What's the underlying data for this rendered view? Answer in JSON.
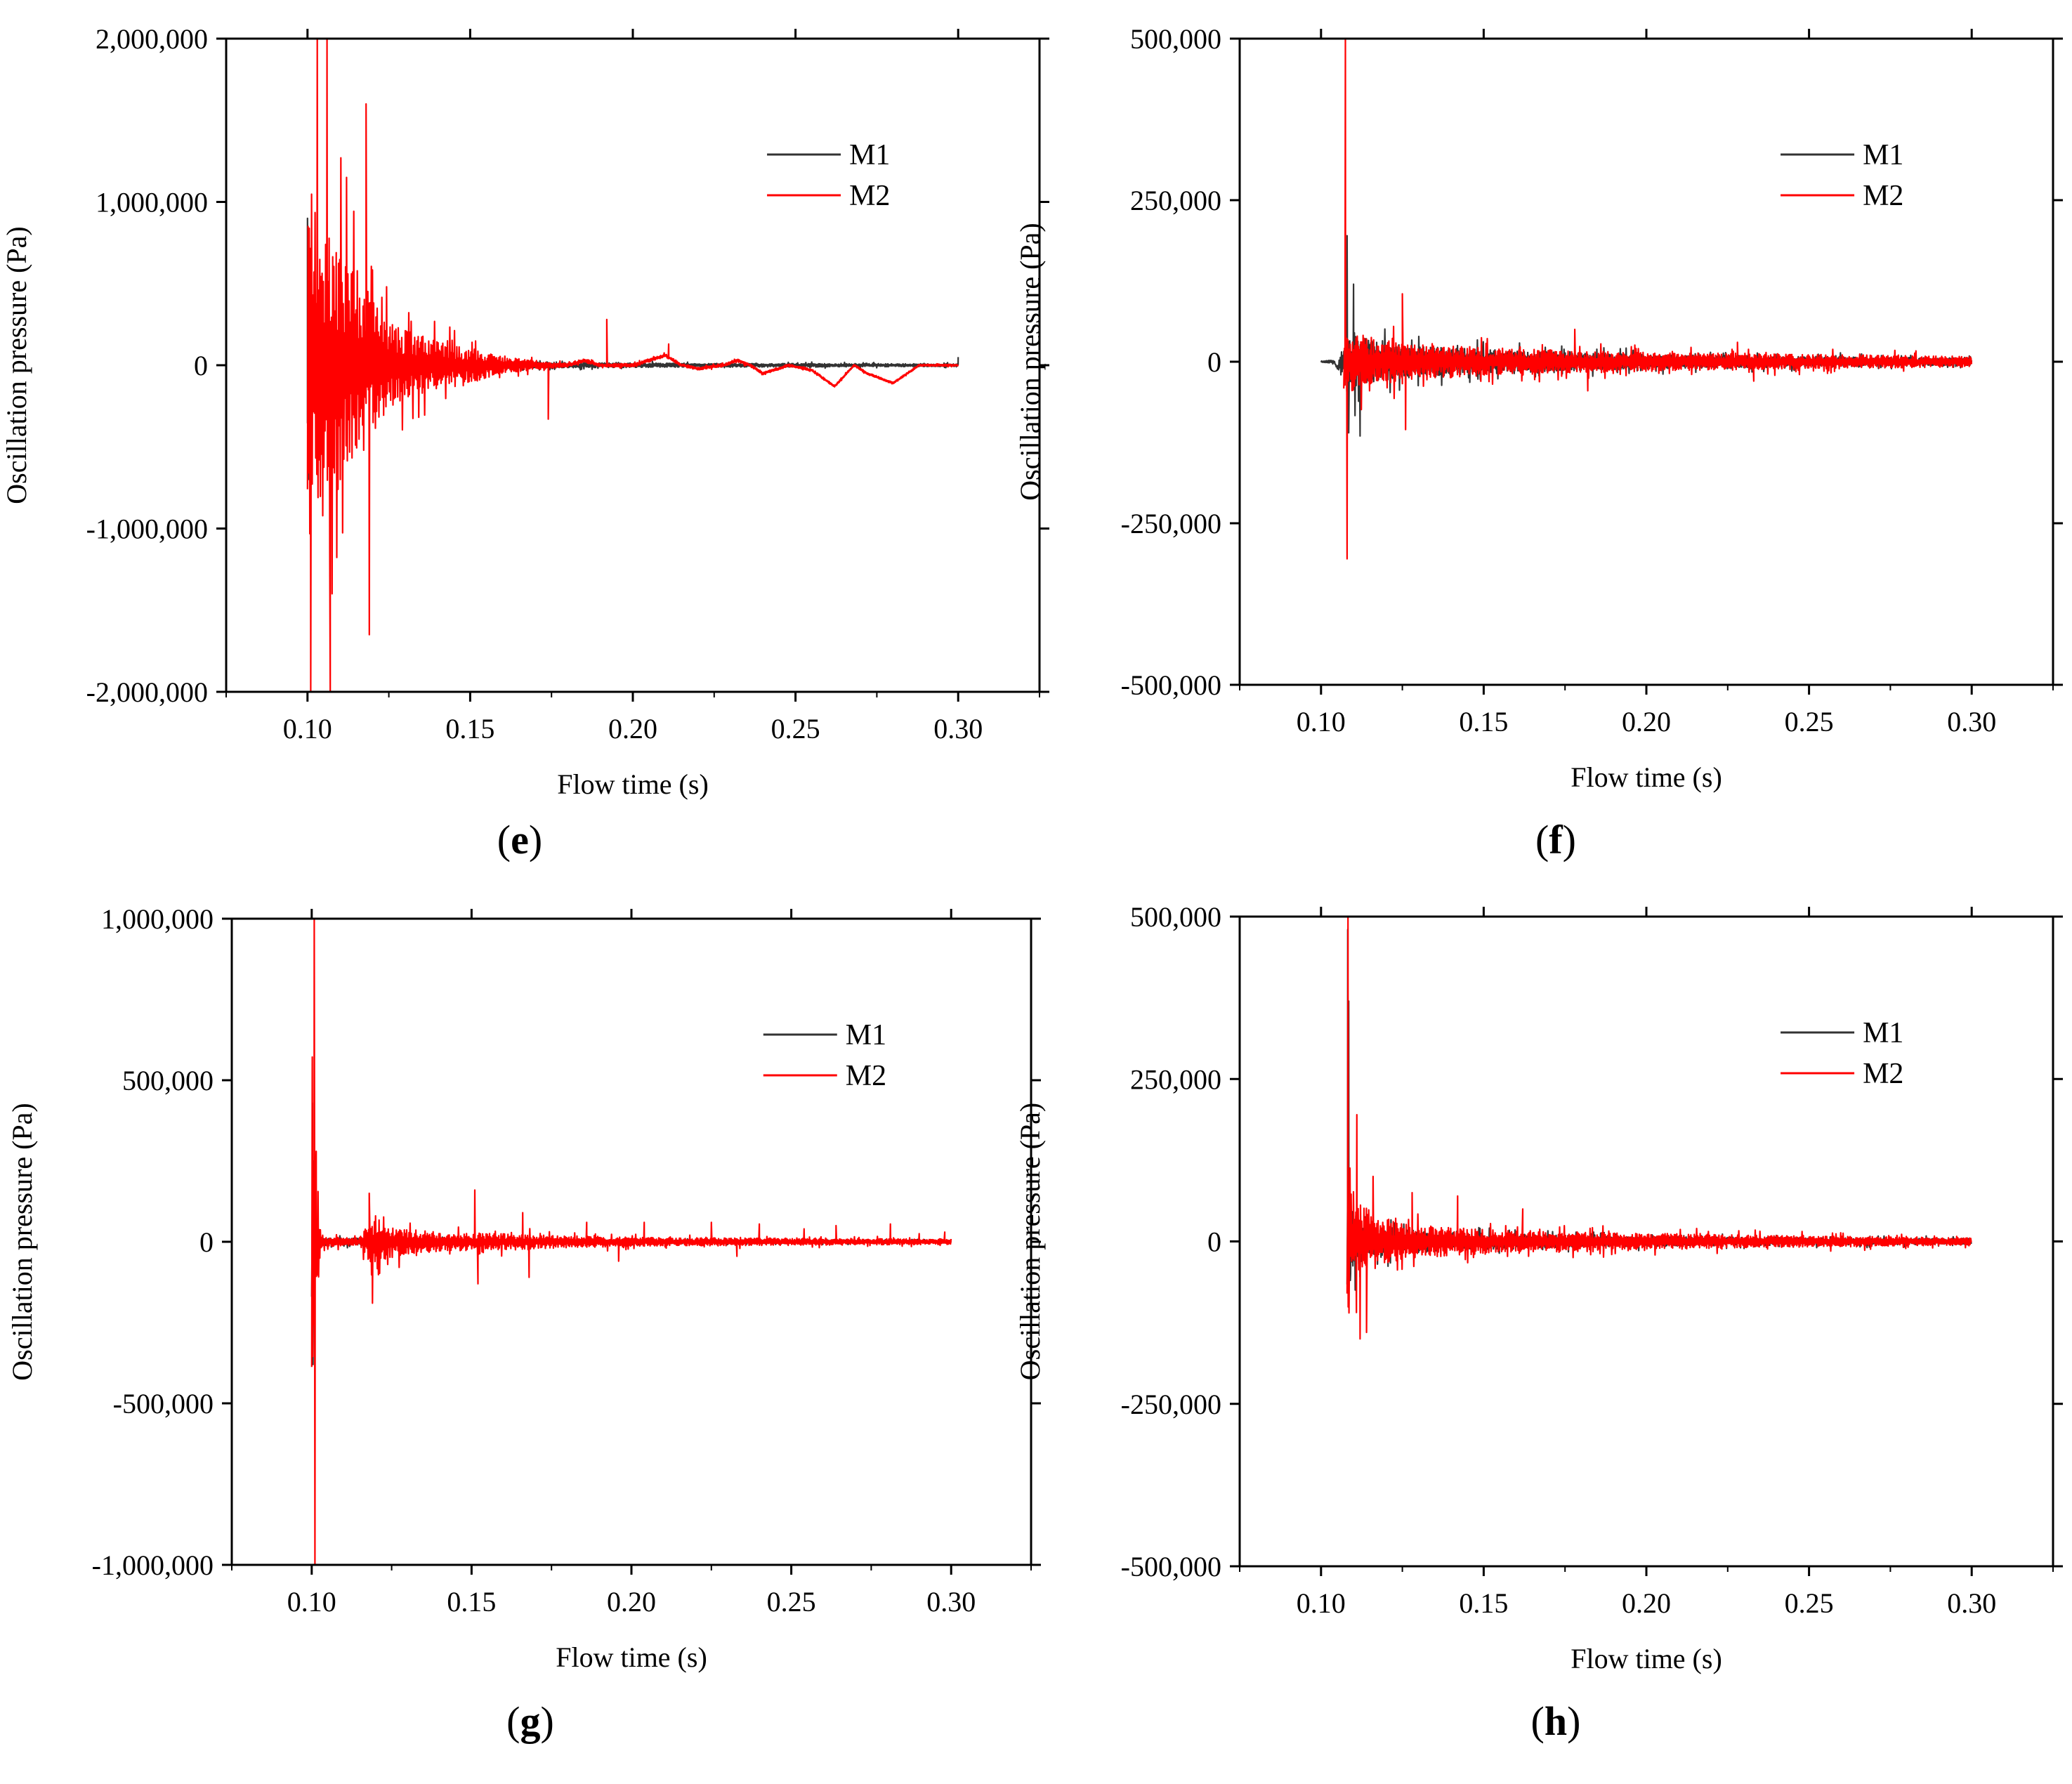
{
  "figure": {
    "colors": {
      "M1": "#333333",
      "M2": "#ff0000",
      "frame": "#000000",
      "background": "#ffffff"
    },
    "chart_data": [
      {
        "type": "line",
        "panel": "e",
        "panel_letter": "e",
        "xlabel": "Flow time (s)",
        "ylabel": "Oscillation pressure (Pa)",
        "xlim": [
          0.075,
          0.325
        ],
        "ylim": [
          -2000000,
          2000000
        ],
        "x_ticks": [
          0.1,
          0.15,
          0.2,
          0.25,
          0.3
        ],
        "x_tick_labels": [
          "0.10",
          "0.15",
          "0.20",
          "0.25",
          "0.30"
        ],
        "y_ticks": [
          -2000000,
          -1000000,
          0,
          1000000,
          2000000
        ],
        "y_tick_labels": [
          "-2,000,000",
          "-1,000,000",
          "0",
          "1,000,000",
          "2,000,000"
        ],
        "legend": [
          "M1",
          "M2"
        ],
        "legend_position": "top-right",
        "series": [
          {
            "name": "M1",
            "t_start": 0.1,
            "t_end": 0.3,
            "envelope": [
              [
                0.1,
                900000
              ],
              [
                0.101,
                150000
              ],
              [
                0.105,
                70000
              ],
              [
                0.11,
                60000
              ],
              [
                0.12,
                50000
              ],
              [
                0.14,
                40000
              ],
              [
                0.17,
                30000
              ],
              [
                0.2,
                25000
              ],
              [
                0.25,
                20000
              ],
              [
                0.3,
                15000
              ]
            ],
            "spikes": [
              [
                0.1,
                900000
              ],
              [
                0.1005,
                -700000
              ],
              [
                0.3,
                50000
              ]
            ],
            "drift": []
          },
          {
            "name": "M2",
            "t_start": 0.1,
            "t_end": 0.3,
            "envelope": [
              [
                0.1,
                1900000
              ],
              [
                0.105,
                1800000
              ],
              [
                0.11,
                1300000
              ],
              [
                0.115,
                1000000
              ],
              [
                0.12,
                800000
              ],
              [
                0.125,
                500000
              ],
              [
                0.13,
                400000
              ],
              [
                0.14,
                280000
              ],
              [
                0.15,
                200000
              ],
              [
                0.16,
                100000
              ],
              [
                0.17,
                50000
              ],
              [
                0.18,
                20000
              ],
              [
                0.3,
                10000
              ]
            ],
            "spikes": [
              [
                0.101,
                -2000000
              ],
              [
                0.103,
                2000000
              ],
              [
                0.106,
                2000000
              ],
              [
                0.107,
                -2000000
              ],
              [
                0.118,
                1600000
              ],
              [
                0.119,
                -1650000
              ],
              [
                0.112,
                1150000
              ],
              [
                0.174,
                -330000
              ],
              [
                0.192,
                280000
              ],
              [
                0.211,
                130000
              ]
            ],
            "drift": [
              [
                0.175,
                0
              ],
              [
                0.18,
                0
              ],
              [
                0.185,
                30000
              ],
              [
                0.19,
                0
              ],
              [
                0.2,
                0
              ],
              [
                0.21,
                60000
              ],
              [
                0.215,
                0
              ],
              [
                0.22,
                -20000
              ],
              [
                0.228,
                0
              ],
              [
                0.232,
                30000
              ],
              [
                0.236,
                0
              ],
              [
                0.24,
                -50000
              ],
              [
                0.248,
                0
              ],
              [
                0.255,
                -30000
              ],
              [
                0.262,
                -130000
              ],
              [
                0.268,
                0
              ],
              [
                0.272,
                -50000
              ],
              [
                0.28,
                -110000
              ],
              [
                0.288,
                0
              ],
              [
                0.3,
                0
              ]
            ]
          }
        ]
      },
      {
        "type": "line",
        "panel": "f",
        "panel_letter": "f",
        "xlabel": "Flow time (s)",
        "ylabel": "Oscillation pressure (Pa)",
        "xlim": [
          0.075,
          0.325
        ],
        "ylim": [
          -500000,
          500000
        ],
        "x_ticks": [
          0.1,
          0.15,
          0.2,
          0.25,
          0.3
        ],
        "x_tick_labels": [
          "0.10",
          "0.15",
          "0.20",
          "0.25",
          "0.30"
        ],
        "y_ticks": [
          -500000,
          -250000,
          0,
          250000,
          500000
        ],
        "y_tick_labels": [
          "-500,000",
          "-250,000",
          "0",
          "250,000",
          "500,000"
        ],
        "legend": [
          "M1",
          "M2"
        ],
        "legend_position": "top-right",
        "series": [
          {
            "name": "M1",
            "t_start": 0.1,
            "t_end": 0.3,
            "envelope": [
              [
                0.1,
                2000
              ],
              [
                0.105,
                5000
              ],
              [
                0.108,
                60000
              ],
              [
                0.11,
                90000
              ],
              [
                0.115,
                60000
              ],
              [
                0.125,
                45000
              ],
              [
                0.14,
                40000
              ],
              [
                0.16,
                30000
              ],
              [
                0.2,
                20000
              ],
              [
                0.25,
                15000
              ],
              [
                0.3,
                10000
              ]
            ],
            "spikes": [
              [
                0.108,
                195000
              ],
              [
                0.1085,
                -110000
              ],
              [
                0.112,
                -115000
              ],
              [
                0.11,
                120000
              ]
            ],
            "drift": [
              [
                0.1,
                0
              ],
              [
                0.104,
                0
              ],
              [
                0.105,
                -10000
              ],
              [
                0.106,
                0
              ],
              [
                0.3,
                0
              ]
            ]
          },
          {
            "name": "M2",
            "t_start": 0.107,
            "t_end": 0.3,
            "envelope": [
              [
                0.107,
                100000
              ],
              [
                0.11,
                80000
              ],
              [
                0.12,
                60000
              ],
              [
                0.13,
                50000
              ],
              [
                0.15,
                40000
              ],
              [
                0.18,
                30000
              ],
              [
                0.22,
                25000
              ],
              [
                0.26,
                20000
              ],
              [
                0.3,
                15000
              ]
            ],
            "spikes": [
              [
                0.1075,
                500000
              ],
              [
                0.108,
                -305000
              ],
              [
                0.125,
                105000
              ],
              [
                0.126,
                -105000
              ],
              [
                0.178,
                50000
              ],
              [
                0.182,
                -45000
              ],
              [
                0.228,
                30000
              ],
              [
                0.233,
                -30000
              ]
            ],
            "drift": []
          }
        ]
      },
      {
        "type": "line",
        "panel": "g",
        "panel_letter": "g",
        "xlabel": "Flow time (s)",
        "ylabel": "Oscillation pressure (Pa)",
        "xlim": [
          0.075,
          0.325
        ],
        "ylim": [
          -1000000,
          1000000
        ],
        "x_ticks": [
          0.1,
          0.15,
          0.2,
          0.25,
          0.3
        ],
        "x_tick_labels": [
          "0.10",
          "0.15",
          "0.20",
          "0.25",
          "0.30"
        ],
        "y_ticks": [
          -1000000,
          -500000,
          0,
          500000,
          1000000
        ],
        "y_tick_labels": [
          "-1,000,000",
          "-500,000",
          "0",
          "500,000",
          "1,000,000"
        ],
        "legend": [
          "M1",
          "M2"
        ],
        "legend_position": "top-right",
        "series": [
          {
            "name": "M1",
            "t_start": 0.1,
            "t_end": 0.3,
            "envelope": [
              [
                0.1,
                400000
              ],
              [
                0.101,
                150000
              ],
              [
                0.103,
                20000
              ],
              [
                0.12,
                20000
              ],
              [
                0.14,
                15000
              ],
              [
                0.2,
                10000
              ],
              [
                0.3,
                8000
              ]
            ],
            "spikes": [
              [
                0.1002,
                430000
              ],
              [
                0.1004,
                -380000
              ],
              [
                0.1006,
                250000
              ]
            ],
            "drift": []
          },
          {
            "name": "M2",
            "t_start": 0.1,
            "t_end": 0.3,
            "envelope": [
              [
                0.1,
                900000
              ],
              [
                0.101,
                500000
              ],
              [
                0.103,
                30000
              ],
              [
                0.115,
                20000
              ],
              [
                0.118,
                120000
              ],
              [
                0.125,
                90000
              ],
              [
                0.135,
                60000
              ],
              [
                0.15,
                50000
              ],
              [
                0.17,
                40000
              ],
              [
                0.2,
                25000
              ],
              [
                0.25,
                20000
              ],
              [
                0.3,
                15000
              ]
            ],
            "spikes": [
              [
                0.1008,
                1000000
              ],
              [
                0.101,
                -1000000
              ],
              [
                0.1014,
                280000
              ],
              [
                0.118,
                150000
              ],
              [
                0.119,
                -190000
              ],
              [
                0.151,
                160000
              ],
              [
                0.152,
                -130000
              ],
              [
                0.166,
                90000
              ],
              [
                0.168,
                -110000
              ],
              [
                0.186,
                60000
              ],
              [
                0.196,
                -60000
              ],
              [
                0.204,
                60000
              ],
              [
                0.225,
                60000
              ],
              [
                0.233,
                -45000
              ],
              [
                0.24,
                55000
              ],
              [
                0.254,
                40000
              ],
              [
                0.264,
                50000
              ],
              [
                0.281,
                55000
              ],
              [
                0.29,
                25000
              ],
              [
                0.298,
                30000
              ]
            ],
            "drift": []
          }
        ]
      },
      {
        "type": "line",
        "panel": "h",
        "panel_letter": "h",
        "xlabel": "Flow time (s)",
        "ylabel": "Oscillation pressure (Pa)",
        "xlim": [
          0.075,
          0.325
        ],
        "ylim": [
          -500000,
          500000
        ],
        "x_ticks": [
          0.1,
          0.15,
          0.2,
          0.25,
          0.3
        ],
        "x_tick_labels": [
          "0.10",
          "0.15",
          "0.20",
          "0.25",
          "0.30"
        ],
        "y_ticks": [
          -500000,
          -250000,
          0,
          250000,
          500000
        ],
        "y_tick_labels": [
          "-500,000",
          "-250,000",
          "0",
          "250,000",
          "500,000"
        ],
        "legend": [
          "M1",
          "M2"
        ],
        "legend_position": "top-right",
        "series": [
          {
            "name": "M1",
            "t_start": 0.108,
            "t_end": 0.3,
            "envelope": [
              [
                0.108,
                150000
              ],
              [
                0.11,
                80000
              ],
              [
                0.115,
                45000
              ],
              [
                0.125,
                35000
              ],
              [
                0.14,
                25000
              ],
              [
                0.17,
                18000
              ],
              [
                0.22,
                12000
              ],
              [
                0.3,
                8000
              ]
            ],
            "spikes": [
              [
                0.1082,
                480000
              ],
              [
                0.1085,
                370000
              ],
              [
                0.109,
                -60000
              ]
            ],
            "drift": []
          },
          {
            "name": "M2",
            "t_start": 0.108,
            "t_end": 0.3,
            "envelope": [
              [
                0.108,
                180000
              ],
              [
                0.11,
                130000
              ],
              [
                0.113,
                100000
              ],
              [
                0.118,
                70000
              ],
              [
                0.125,
                50000
              ],
              [
                0.14,
                40000
              ],
              [
                0.16,
                30000
              ],
              [
                0.19,
                25000
              ],
              [
                0.23,
                18000
              ],
              [
                0.3,
                10000
              ]
            ],
            "spikes": [
              [
                0.1083,
                500000
              ],
              [
                0.1086,
                -110000
              ],
              [
                0.111,
                195000
              ],
              [
                0.112,
                -150000
              ],
              [
                0.114,
                -140000
              ],
              [
                0.116,
                100000
              ],
              [
                0.128,
                75000
              ],
              [
                0.142,
                70000
              ],
              [
                0.162,
                50000
              ]
            ],
            "drift": []
          }
        ]
      }
    ]
  }
}
